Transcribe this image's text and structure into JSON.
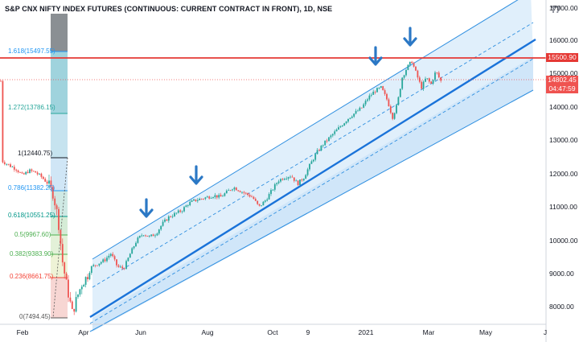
{
  "title": "S&P CNX NIFTY INDEX FUTURES (CONTINUOUS: CURRENT CONTRACT IN FRONT), 1D, NSE",
  "logo_icon": "tradingview-logo-icon",
  "colors": {
    "channel_fill": "#d6eafa",
    "channel_line": "#2f8fe0",
    "midline": "#2f8fe0",
    "resistance": "#e53935",
    "up_candle": "#26a69a",
    "down_candle": "#ef5350",
    "arrow": "#2b78c5",
    "current_price_bg": "#ef5350",
    "resistance_tag_bg": "#e53935"
  },
  "price_axis": {
    "ticks": [
      "17000.00",
      "16000.00",
      "15000.00",
      "14000.00",
      "13000.00",
      "12000.00",
      "11000.00",
      "10000.00",
      "9000.00",
      "8000.00"
    ]
  },
  "time_axis": {
    "ticks": [
      "Feb",
      "Apr",
      "Jun",
      "Aug",
      "Oct",
      "9",
      "2021",
      "Mar",
      "May",
      "J"
    ]
  },
  "fib_levels": [
    {
      "label": "1.618(15497.55)",
      "color": "#2196f3"
    },
    {
      "label": "1.272(13786.15)",
      "color": "#26a69a"
    },
    {
      "label": "1(12440.75)",
      "color": "#131722"
    },
    {
      "label": "0.786(11382.25)",
      "color": "#2196f3"
    },
    {
      "label": "0.618(10551.25)",
      "color": "#009688"
    },
    {
      "label": "0.5(9967.60)",
      "color": "#4caf50"
    },
    {
      "label": "0.382(9383.90)",
      "color": "#4caf50"
    },
    {
      "label": "0.236(8661.75)",
      "color": "#f44336"
    },
    {
      "label": "0(7494.45)",
      "color": "#555555"
    }
  ],
  "price_tags": {
    "resistance": "15500.90",
    "current_price": "14802.45",
    "countdown": "04:47:59"
  },
  "annotations": [
    "down-arrow-icon",
    "down-arrow-icon",
    "down-arrow-icon",
    "down-arrow-icon",
    "down-arrow-icon"
  ]
}
